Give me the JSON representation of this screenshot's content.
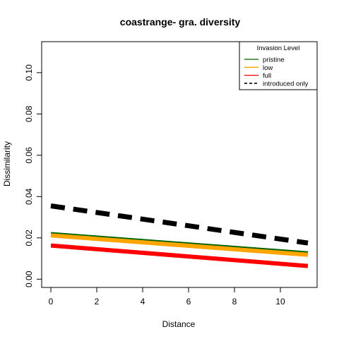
{
  "chart_data": {
    "type": "line",
    "title": "coastrange- gra. diversity",
    "xlabel": "Distance",
    "ylabel": "Dissimilarity",
    "xlim": [
      -0.4,
      11.6
    ],
    "ylim": [
      -0.004,
      0.115
    ],
    "xticks": [
      0,
      2,
      4,
      6,
      8,
      10
    ],
    "xtick_labels": [
      "0",
      "2",
      "4",
      "6",
      "8",
      "10"
    ],
    "yticks": [
      0.0,
      0.02,
      0.04,
      0.06,
      0.08,
      0.1
    ],
    "ytick_labels": [
      "0.00",
      "0.02",
      "0.04",
      "0.06",
      "0.08",
      "0.10"
    ],
    "grid": false,
    "legend": {
      "title": "Invasion Level",
      "position": "top-right",
      "entries": [
        {
          "label": "pristine",
          "color": "#006400",
          "style": "solid"
        },
        {
          "label": "low",
          "color": "#FFA500",
          "style": "solid"
        },
        {
          "label": "full",
          "color": "#FF0000",
          "style": "solid"
        },
        {
          "label": "introduced only",
          "color": "#000000",
          "style": "dashed"
        }
      ]
    },
    "series": [
      {
        "name": "pristine",
        "x": [
          0,
          11.2
        ],
        "y": [
          0.0218,
          0.0125
        ],
        "color": "#006400",
        "style": "solid"
      },
      {
        "name": "low",
        "x": [
          0,
          11.2
        ],
        "y": [
          0.0212,
          0.0118
        ],
        "color": "#FFA500",
        "style": "solid"
      },
      {
        "name": "full",
        "x": [
          0,
          11.2
        ],
        "y": [
          0.0163,
          0.0064
        ],
        "color": "#FF0000",
        "style": "solid"
      },
      {
        "name": "introduced only",
        "x": [
          0,
          11.2
        ],
        "y": [
          0.0355,
          0.0175
        ],
        "color": "#000000",
        "style": "dashed"
      }
    ]
  }
}
